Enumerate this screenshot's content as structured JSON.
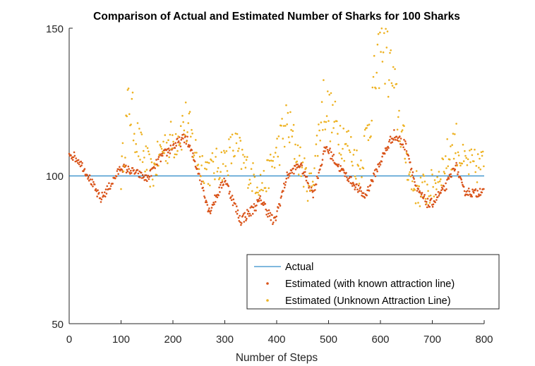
{
  "chart_data": {
    "type": "scatter",
    "title": "Comparison of Actual and Estimated Number of Sharks for 100 Sharks",
    "xlabel": "Number of Steps",
    "ylabel": "",
    "xlim": [
      0,
      800
    ],
    "ylim": [
      50,
      150
    ],
    "xticks": [
      "0",
      "100",
      "200",
      "300",
      "400",
      "500",
      "600",
      "700",
      "800"
    ],
    "yticks": [
      "50",
      "100",
      "150"
    ],
    "grid": false,
    "legend_position": "bottom-right",
    "legend": [
      "Actual",
      "Estimated (with known attraction line)",
      "Estimated (Unknown Attraction Line)"
    ],
    "colors": {
      "actual": "#0072BD",
      "known": "#D95319",
      "unknown": "#EDB120"
    },
    "series": [
      {
        "name": "Actual",
        "kind": "line",
        "x": [
          0,
          800
        ],
        "y": [
          100,
          100
        ]
      },
      {
        "name": "Estimated (with known attraction line)",
        "kind": "scatter",
        "anchors_x": [
          0,
          20,
          40,
          60,
          80,
          100,
          130,
          150,
          175,
          200,
          225,
          250,
          270,
          300,
          330,
          350,
          370,
          395,
          420,
          445,
          470,
          495,
          520,
          545,
          570,
          595,
          625,
          650,
          670,
          695,
          725,
          745,
          760,
          785,
          800
        ],
        "anchors_y": [
          108,
          105,
          99,
          92,
          97,
          103,
          101,
          99,
          106,
          110,
          113,
          101,
          88,
          99,
          85,
          88,
          92,
          84,
          100,
          104,
          94,
          110,
          103,
          98,
          93,
          103,
          114,
          110,
          95,
          90,
          96,
          104,
          95,
          94,
          96
        ]
      },
      {
        "name": "Estimated (Unknown Attraction Line)",
        "kind": "scatter",
        "anchors_x": [
          100,
          115,
          135,
          160,
          180,
          200,
          225,
          250,
          270,
          300,
          320,
          350,
          375,
          400,
          420,
          445,
          465,
          490,
          510,
          540,
          560,
          580,
          600,
          620,
          640,
          660,
          680,
          700,
          725,
          745,
          760,
          785,
          800
        ],
        "anchors_y": [
          100,
          125,
          110,
          100,
          110,
          112,
          118,
          105,
          102,
          105,
          110,
          100,
          97,
          108,
          118,
          105,
          95,
          125,
          118,
          110,
          102,
          120,
          145,
          135,
          115,
          97,
          95,
          96,
          105,
          112,
          104,
          103,
          104
        ]
      }
    ]
  }
}
